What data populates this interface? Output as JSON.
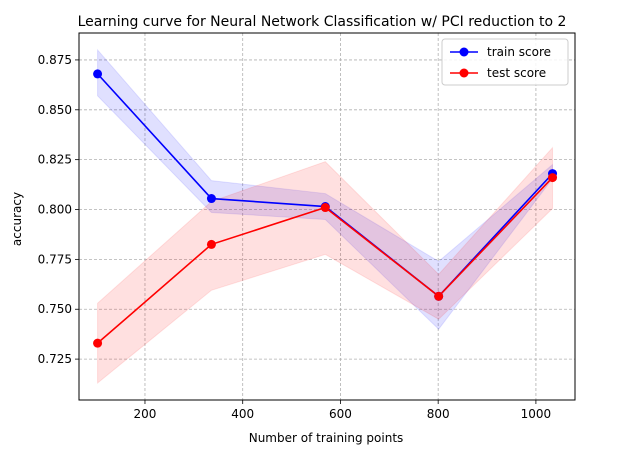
{
  "chart_data": {
    "type": "line",
    "title": "Learning curve for Neural Network Classification w/ PCI reduction to 2",
    "xlabel": "Number of training points",
    "ylabel": "accuracy",
    "x": [
      103,
      336,
      569,
      801,
      1034
    ],
    "xlim": [
      65,
      1080
    ],
    "ylim": [
      0.7045,
      0.8885
    ],
    "xticks": [
      200,
      400,
      600,
      800,
      1000
    ],
    "yticks": [
      0.725,
      0.75,
      0.775,
      0.8,
      0.825,
      0.85,
      0.875
    ],
    "ytick_labels": [
      "0.725",
      "0.750",
      "0.775",
      "0.800",
      "0.825",
      "0.850",
      "0.875"
    ],
    "grid": true,
    "grid_style": "dashed",
    "legend_position": "top-right",
    "series": [
      {
        "name": "train score",
        "color": "#0000ff",
        "band_color": "#0000ff",
        "values": [
          0.868,
          0.8055,
          0.8015,
          0.7565,
          0.818
        ],
        "lower": [
          0.857,
          0.7985,
          0.795,
          0.74,
          0.8155
        ],
        "upper": [
          0.88,
          0.8145,
          0.808,
          0.774,
          0.8225
        ]
      },
      {
        "name": "test score",
        "color": "#ff0000",
        "band_color": "#ff0000",
        "values": [
          0.733,
          0.7825,
          0.801,
          0.7565,
          0.816
        ],
        "lower": [
          0.713,
          0.7595,
          0.7775,
          0.745,
          0.8005
        ],
        "upper": [
          0.753,
          0.804,
          0.824,
          0.7675,
          0.831
        ]
      }
    ]
  }
}
